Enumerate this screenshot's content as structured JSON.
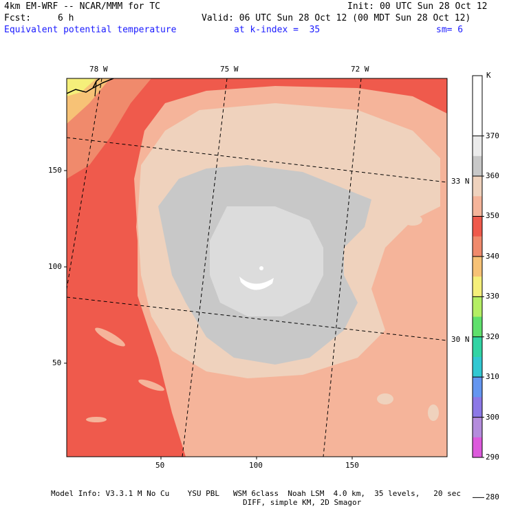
{
  "header": {
    "model_title": "4km EM-WRF -- NCAR/MMM for TC",
    "init": "Init: 00 UTC Sun 28 Oct 12",
    "fcst_label": "Fcst:",
    "fcst_value": "6 h",
    "valid": "Valid: 06 UTC Sun 28 Oct 12 (00 MDT Sun 28 Oct 12)",
    "field_name": "Equivalent potential temperature",
    "level": "at k-index =  35",
    "smoothing": "sm= 6"
  },
  "map": {
    "lon_labels": [
      "78 W",
      "75 W",
      "72 W"
    ],
    "lat_labels": [
      "33 N",
      "30 N"
    ],
    "x_ticks": [
      "50",
      "100",
      "150"
    ],
    "y_ticks": [
      "150",
      "100",
      "50"
    ]
  },
  "colorbar": {
    "unit": "K",
    "levels": [
      "370",
      "360",
      "350",
      "340",
      "330",
      "320",
      "310",
      "300",
      "290",
      "280"
    ],
    "colors": [
      "#ffffff",
      "#ffffff",
      "#ffffff",
      "#ebebeb",
      "#c8c8c8",
      "#efd2bd",
      "#f5b49a",
      "#ef5a4c",
      "#f08a6c",
      "#f7c276",
      "#f5ef7a",
      "#b4ee64",
      "#5fe06c",
      "#32d4a4",
      "#32c8d2",
      "#6496f0",
      "#8c78e6",
      "#b48cdc",
      "#dc5adc"
    ]
  },
  "footer": {
    "line1": "Model Info: V3.3.1 M No Cu    YSU PBL   WSM 6class  Noah LSM  4.0 km,  35 levels,   20 sec",
    "line2": "DIFF, simple KM, 2D Smagor"
  }
}
